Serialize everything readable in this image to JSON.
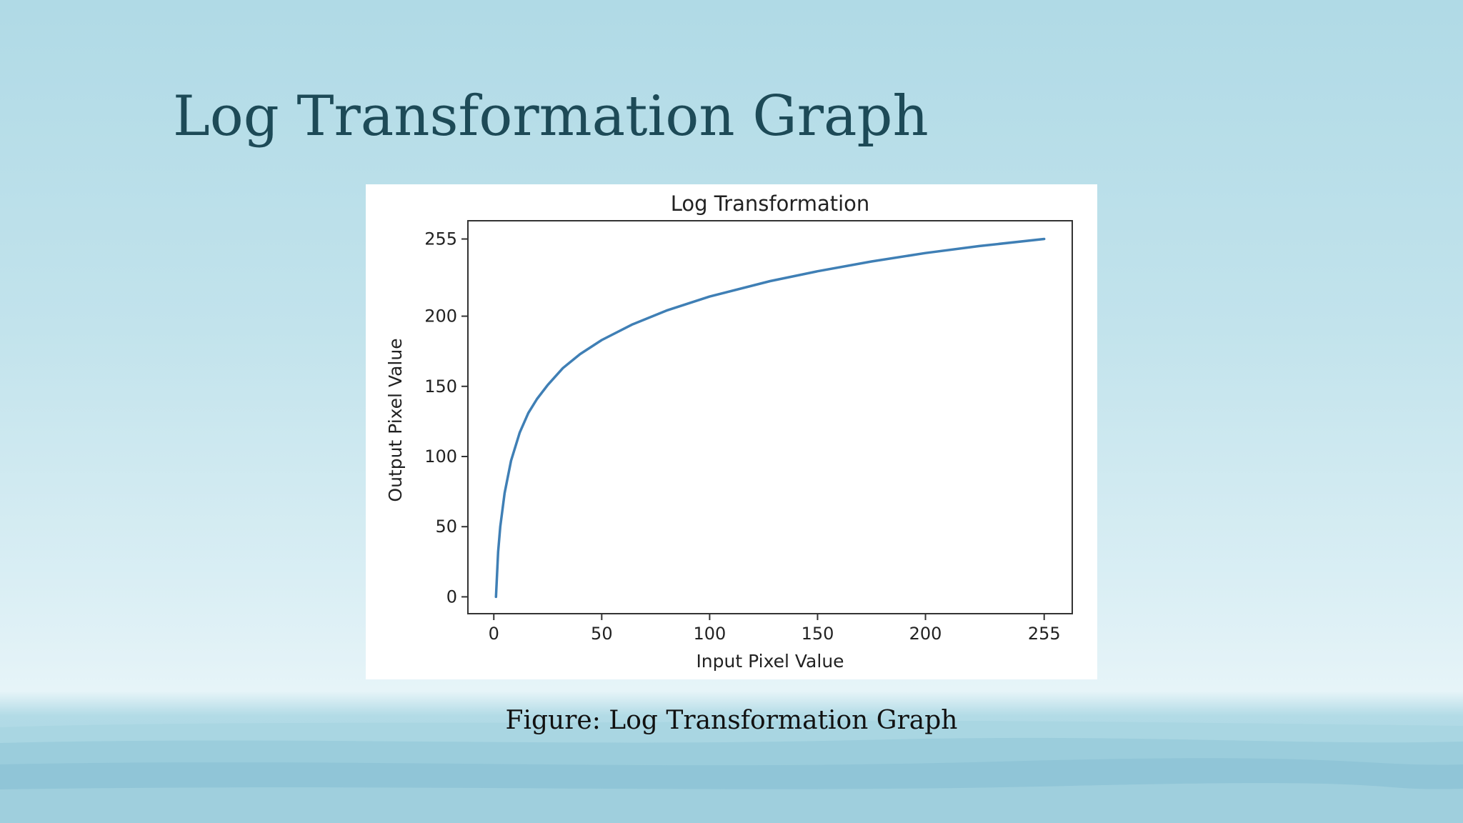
{
  "slide": {
    "title": "Log Transformation Graph",
    "caption": "Figure: Log Transformation Graph"
  },
  "colors": {
    "title": "#1d4a57",
    "line": "#3f7fb5",
    "axis": "#333333"
  },
  "chart_data": {
    "type": "line",
    "title": "Log Transformation",
    "xlabel": "Input Pixel Value",
    "ylabel": "Output Pixel Value",
    "xlim": [
      -12,
      268
    ],
    "ylim": [
      -12,
      268
    ],
    "xticks": [
      0,
      50,
      100,
      150,
      200,
      255
    ],
    "yticks": [
      0,
      50,
      100,
      150,
      200,
      255
    ],
    "grid": false,
    "series": [
      {
        "x": [
          1,
          2,
          3,
          5,
          8,
          12,
          16,
          20,
          25,
          32,
          40,
          50,
          64,
          80,
          100,
          128,
          150,
          175,
          200,
          225,
          255
        ],
        "y": [
          0,
          32,
          50,
          74,
          97,
          117,
          131,
          141,
          151,
          163,
          173,
          183,
          194,
          204,
          214,
          225,
          232,
          239,
          245,
          250,
          255
        ]
      }
    ]
  }
}
